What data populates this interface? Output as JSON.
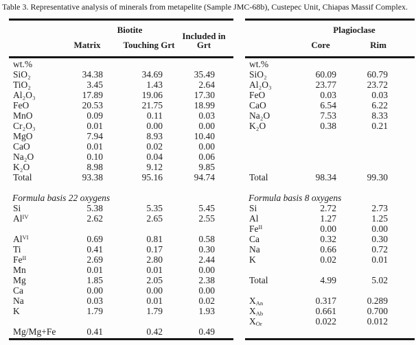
{
  "caption": "Table 3. Representative analysis of minerals from metapelite (Sample JMC-68b), Custepec Unit, Chiapas Massif Complex.",
  "colors": {
    "background": "#fdfdfd",
    "text": "#1f1f1f",
    "rule": "#161616"
  },
  "biotite": {
    "group_header": "Biotite",
    "columns": [
      "Matrix",
      "Touching Grt",
      "Included in Grt"
    ],
    "rows": [
      {
        "label": "wt.%",
        "values": [
          "",
          "",
          ""
        ]
      },
      {
        "label": "SiO₂",
        "values": [
          "34.38",
          "34.69",
          "35.49"
        ]
      },
      {
        "label": "TiO₂",
        "values": [
          "3.45",
          "1.43",
          "2.64"
        ]
      },
      {
        "label": "Al₂O₃",
        "values": [
          "17.89",
          "19.06",
          "17.30"
        ]
      },
      {
        "label": "FeO",
        "values": [
          "20.53",
          "21.75",
          "18.99"
        ]
      },
      {
        "label": "MnO",
        "values": [
          "0.09",
          "0.11",
          "0.03"
        ]
      },
      {
        "label": "Cr₂O₃",
        "values": [
          "0.01",
          "0.00",
          "0.00"
        ]
      },
      {
        "label": "MgO",
        "values": [
          "7.94",
          "8.93",
          "10.40"
        ]
      },
      {
        "label": "CaO",
        "values": [
          "0.01",
          "0.02",
          "0.00"
        ]
      },
      {
        "label": "Na₂O",
        "values": [
          "0.10",
          "0.04",
          "0.06"
        ]
      },
      {
        "label": "K₂O",
        "values": [
          "8.98",
          "9.12",
          "9.85"
        ]
      },
      {
        "label": "Total",
        "values": [
          "93.38",
          "95.16",
          "94.74"
        ]
      },
      {
        "blank": true
      },
      {
        "label": "Formula basis 22 oxygens",
        "italic": true,
        "span": true
      },
      {
        "label": "Si",
        "values": [
          "5.38",
          "5.35",
          "5.45"
        ]
      },
      {
        "label": "Al",
        "sup": "IV",
        "values": [
          "2.62",
          "2.65",
          "2.55"
        ]
      },
      {
        "blank": true
      },
      {
        "label": "Al",
        "sup": "VI",
        "values": [
          "0.69",
          "0.81",
          "0.58"
        ]
      },
      {
        "label": "Ti",
        "values": [
          "0.41",
          "0.17",
          "0.30"
        ]
      },
      {
        "label": "Fe",
        "sup": "II",
        "values": [
          "2.69",
          "2.80",
          "2.44"
        ]
      },
      {
        "label": "Mn",
        "values": [
          "0.01",
          "0.01",
          "0.00"
        ]
      },
      {
        "label": "Mg",
        "values": [
          "1.85",
          "2.05",
          "2.38"
        ]
      },
      {
        "label": "Ca",
        "values": [
          "0.00",
          "0.00",
          "0.00"
        ]
      },
      {
        "label": "Na",
        "values": [
          "0.03",
          "0.01",
          "0.02"
        ]
      },
      {
        "label": "K",
        "values": [
          "1.79",
          "1.79",
          "1.93"
        ]
      },
      {
        "blank": true
      },
      {
        "label": "Mg/Mg+Fe",
        "values": [
          "0.41",
          "0.42",
          "0.49"
        ]
      }
    ]
  },
  "plagioclase": {
    "group_header": "Plagioclase",
    "columns": [
      "Core",
      "Rim"
    ],
    "rows": [
      {
        "label": "wt.%",
        "values": [
          "",
          ""
        ]
      },
      {
        "label": "SiO₂",
        "values": [
          "60.09",
          "60.79"
        ]
      },
      {
        "label": "Al₂O₃",
        "values": [
          "23.77",
          "23.72"
        ]
      },
      {
        "label": "FeO",
        "values": [
          "0.03",
          "0.03"
        ]
      },
      {
        "label": "CaO",
        "values": [
          "6.54",
          "6.22"
        ]
      },
      {
        "label": "Na₂O",
        "values": [
          "7.53",
          "8.33"
        ]
      },
      {
        "label": "K₂O",
        "values": [
          "0.38",
          "0.21"
        ]
      },
      {
        "blank": true
      },
      {
        "blank": true
      },
      {
        "blank": true
      },
      {
        "blank": true
      },
      {
        "label": "Total",
        "values": [
          "98.34",
          "99.30"
        ]
      },
      {
        "blank": true
      },
      {
        "label": "Formula basis 8 oxygens",
        "italic": true,
        "span": true
      },
      {
        "label": "Si",
        "values": [
          "2.72",
          "2.73"
        ]
      },
      {
        "label": "Al",
        "values": [
          "1.27",
          "1.25"
        ]
      },
      {
        "label": "Fe",
        "sup": "II",
        "values": [
          "0.00",
          "0.00"
        ]
      },
      {
        "label": "Ca",
        "values": [
          "0.32",
          "0.30"
        ]
      },
      {
        "label": "Na",
        "values": [
          "0.66",
          "0.72"
        ]
      },
      {
        "label": "K",
        "values": [
          "0.02",
          "0.01"
        ]
      },
      {
        "blank": true
      },
      {
        "label": "Total",
        "values": [
          "4.99",
          "5.02"
        ]
      },
      {
        "blank": true
      },
      {
        "label": "X",
        "sub": "An",
        "values": [
          "0.317",
          "0.289"
        ]
      },
      {
        "label": "X",
        "sub": "Ab",
        "values": [
          "0.661",
          "0.700"
        ]
      },
      {
        "label": "X",
        "sub": "Or",
        "values": [
          "0.022",
          "0.012"
        ]
      },
      {
        "blank": true
      }
    ]
  }
}
